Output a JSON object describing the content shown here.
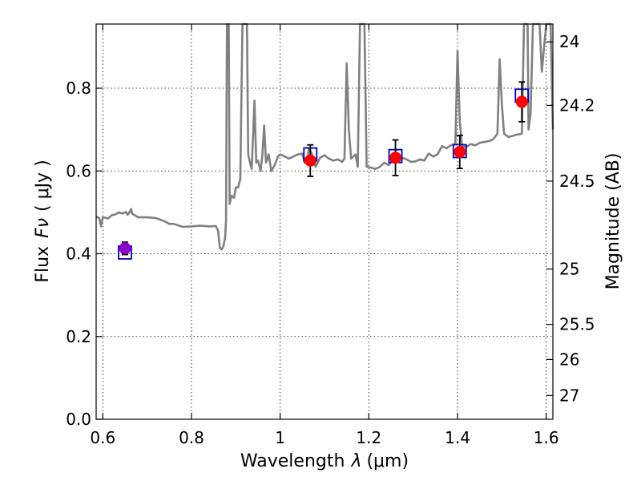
{
  "chart_data": {
    "type": "scatter",
    "xlabel": "Wavelength",
    "xlabel_symbol": "λ",
    "xlabel_unit": "(μm)",
    "ylabel": "Flux",
    "ylabel_symbol": "Fν",
    "ylabel_unit": "( μJy )",
    "y2label": "Magnitude (AB)",
    "xlim": [
      0.585,
      1.615
    ],
    "ylim": [
      0.0,
      0.955
    ],
    "grid": true,
    "x_ticks": [
      {
        "value": 0.6,
        "label": "0.6"
      },
      {
        "value": 0.8,
        "label": "0.8"
      },
      {
        "value": 1.0,
        "label": "1"
      },
      {
        "value": 1.2,
        "label": "1.2"
      },
      {
        "value": 1.4,
        "label": "1.4"
      },
      {
        "value": 1.6,
        "label": "1.6"
      }
    ],
    "y_ticks": [
      {
        "value": 0.0,
        "label": "0.0"
      },
      {
        "value": 0.2,
        "label": "0.2"
      },
      {
        "value": 0.4,
        "label": "0.4"
      },
      {
        "value": 0.6,
        "label": "0.6"
      },
      {
        "value": 0.8,
        "label": "0.8"
      }
    ],
    "y2_ticks": [
      {
        "value": 24.0,
        "label": "24"
      },
      {
        "value": 24.2,
        "label": "24.2"
      },
      {
        "value": 24.5,
        "label": "24.5"
      },
      {
        "value": 25.0,
        "label": "25"
      },
      {
        "value": 25.5,
        "label": "25.5"
      },
      {
        "value": 26.0,
        "label": "26"
      },
      {
        "value": 27.0,
        "label": "27"
      }
    ],
    "series": [
      {
        "name": "model-spectrum",
        "kind": "line",
        "color": "#808080",
        "points": [
          [
            0.585,
            0.49
          ],
          [
            0.592,
            0.486
          ],
          [
            0.596,
            0.466
          ],
          [
            0.6,
            0.488
          ],
          [
            0.606,
            0.487
          ],
          [
            0.612,
            0.485
          ],
          [
            0.62,
            0.493
          ],
          [
            0.628,
            0.495
          ],
          [
            0.636,
            0.5
          ],
          [
            0.644,
            0.497
          ],
          [
            0.652,
            0.501
          ],
          [
            0.656,
            0.494
          ],
          [
            0.66,
            0.5
          ],
          [
            0.664,
            0.508
          ],
          [
            0.666,
            0.497
          ],
          [
            0.672,
            0.493
          ],
          [
            0.68,
            0.488
          ],
          [
            0.7,
            0.488
          ],
          [
            0.72,
            0.486
          ],
          [
            0.74,
            0.478
          ],
          [
            0.75,
            0.472
          ],
          [
            0.76,
            0.472
          ],
          [
            0.78,
            0.465
          ],
          [
            0.8,
            0.466
          ],
          [
            0.82,
            0.468
          ],
          [
            0.84,
            0.466
          ],
          [
            0.855,
            0.467
          ],
          [
            0.86,
            0.455
          ],
          [
            0.864,
            0.415
          ],
          [
            0.868,
            0.41
          ],
          [
            0.872,
            0.418
          ],
          [
            0.876,
            0.44
          ],
          [
            0.878,
            0.48
          ],
          [
            0.88,
            0.96
          ],
          [
            0.884,
            0.96
          ],
          [
            0.886,
            0.52
          ],
          [
            0.89,
            0.54
          ],
          [
            0.896,
            0.535
          ],
          [
            0.9,
            0.56
          ],
          [
            0.905,
            0.56
          ],
          [
            0.91,
            0.58
          ],
          [
            0.915,
            0.96
          ],
          [
            0.925,
            0.96
          ],
          [
            0.928,
            0.64
          ],
          [
            0.932,
            0.62
          ],
          [
            0.936,
            0.605
          ],
          [
            0.942,
            0.77
          ],
          [
            0.946,
            0.62
          ],
          [
            0.95,
            0.625
          ],
          [
            0.956,
            0.6
          ],
          [
            0.96,
            0.64
          ],
          [
            0.964,
            0.71
          ],
          [
            0.968,
            0.62
          ],
          [
            0.974,
            0.64
          ],
          [
            0.98,
            0.6
          ],
          [
            0.988,
            0.615
          ],
          [
            0.995,
            0.635
          ],
          [
            1.0,
            0.64
          ],
          [
            1.01,
            0.635
          ],
          [
            1.02,
            0.63
          ],
          [
            1.03,
            0.635
          ],
          [
            1.04,
            0.64
          ],
          [
            1.05,
            0.642
          ],
          [
            1.055,
            0.62
          ],
          [
            1.06,
            0.622
          ],
          [
            1.065,
            0.655
          ],
          [
            1.07,
            0.645
          ],
          [
            1.08,
            0.61
          ],
          [
            1.09,
            0.632
          ],
          [
            1.1,
            0.638
          ],
          [
            1.11,
            0.63
          ],
          [
            1.12,
            0.625
          ],
          [
            1.13,
            0.628
          ],
          [
            1.14,
            0.622
          ],
          [
            1.145,
            0.63
          ],
          [
            1.15,
            0.86
          ],
          [
            1.155,
            0.7
          ],
          [
            1.16,
            0.63
          ],
          [
            1.17,
            0.64
          ],
          [
            1.175,
            0.61
          ],
          [
            1.18,
            0.96
          ],
          [
            1.19,
            0.96
          ],
          [
            1.195,
            0.61
          ],
          [
            1.205,
            0.608
          ],
          [
            1.215,
            0.605
          ],
          [
            1.225,
            0.61
          ],
          [
            1.235,
            0.62
          ],
          [
            1.245,
            0.614
          ],
          [
            1.255,
            0.63
          ],
          [
            1.265,
            0.64
          ],
          [
            1.275,
            0.632
          ],
          [
            1.285,
            0.628
          ],
          [
            1.295,
            0.622
          ],
          [
            1.305,
            0.623
          ],
          [
            1.315,
            0.628
          ],
          [
            1.325,
            0.625
          ],
          [
            1.335,
            0.642
          ],
          [
            1.345,
            0.635
          ],
          [
            1.355,
            0.64
          ],
          [
            1.365,
            0.66
          ],
          [
            1.375,
            0.655
          ],
          [
            1.385,
            0.662
          ],
          [
            1.395,
            0.666
          ],
          [
            1.4,
            0.89
          ],
          [
            1.405,
            0.72
          ],
          [
            1.41,
            0.66
          ],
          [
            1.42,
            0.658
          ],
          [
            1.43,
            0.665
          ],
          [
            1.44,
            0.662
          ],
          [
            1.45,
            0.668
          ],
          [
            1.46,
            0.67
          ],
          [
            1.47,
            0.672
          ],
          [
            1.48,
            0.676
          ],
          [
            1.49,
            0.69
          ],
          [
            1.495,
            0.87
          ],
          [
            1.5,
            0.76
          ],
          [
            1.505,
            0.69
          ],
          [
            1.515,
            0.682
          ],
          [
            1.525,
            0.685
          ],
          [
            1.535,
            0.688
          ],
          [
            1.545,
            0.69
          ],
          [
            1.55,
            0.96
          ],
          [
            1.558,
            0.96
          ],
          [
            1.56,
            0.7
          ],
          [
            1.565,
            0.74
          ],
          [
            1.57,
            0.96
          ],
          [
            1.585,
            0.96
          ],
          [
            1.59,
            0.84
          ],
          [
            1.6,
            0.96
          ],
          [
            1.61,
            0.96
          ],
          [
            1.615,
            0.7
          ]
        ]
      },
      {
        "name": "model-photometry",
        "kind": "open-square",
        "color": "#0000cc",
        "points": [
          [
            0.65,
            0.403
          ],
          [
            1.068,
            0.64
          ],
          [
            1.26,
            0.636
          ],
          [
            1.405,
            0.648
          ],
          [
            1.545,
            0.782
          ]
        ]
      },
      {
        "name": "observed-photometry",
        "kind": "filled-circle-errorbar",
        "colors": [
          "#8b00c8",
          "#ff0000",
          "#ff0000",
          "#ff0000",
          "#ff0000"
        ],
        "points": [
          {
            "x": 0.65,
            "y": 0.413,
            "err": 0.015
          },
          {
            "x": 1.068,
            "y": 0.625,
            "err": 0.038
          },
          {
            "x": 1.26,
            "y": 0.632,
            "err": 0.043
          },
          {
            "x": 1.405,
            "y": 0.646,
            "err": 0.04
          },
          {
            "x": 1.545,
            "y": 0.767,
            "err": 0.048
          }
        ]
      }
    ]
  }
}
